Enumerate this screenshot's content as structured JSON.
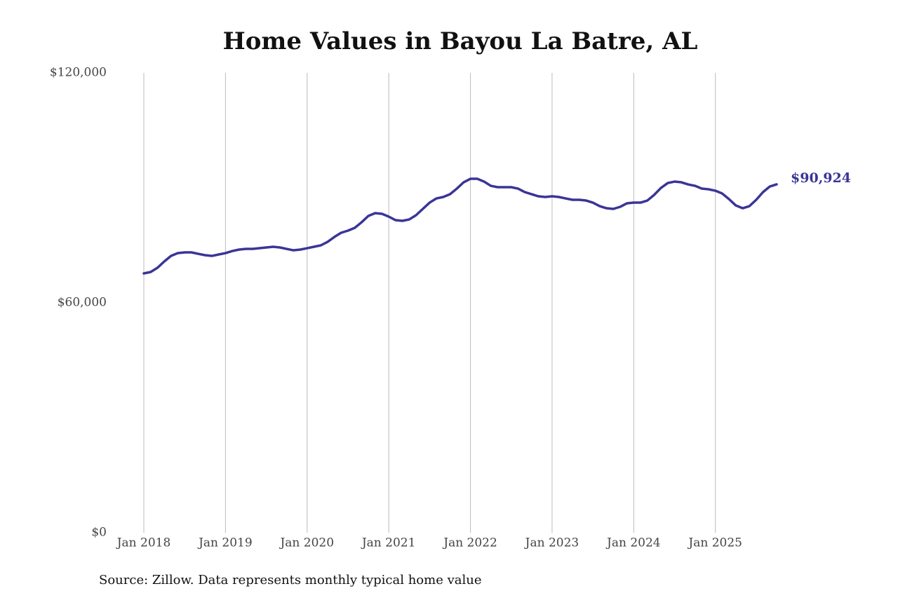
{
  "chart_data": {
    "type": "line",
    "title": "Home Values in Bayou La Batre, AL",
    "source": "Source: Zillow. Data represents monthly typical home value",
    "color": "#3a3596",
    "x": [
      "2018-01",
      "2018-02",
      "2018-03",
      "2018-04",
      "2018-05",
      "2018-06",
      "2018-07",
      "2018-08",
      "2018-09",
      "2018-10",
      "2018-11",
      "2018-12",
      "2019-01",
      "2019-02",
      "2019-03",
      "2019-04",
      "2019-05",
      "2019-06",
      "2019-07",
      "2019-08",
      "2019-09",
      "2019-10",
      "2019-11",
      "2019-12",
      "2020-01",
      "2020-02",
      "2020-03",
      "2020-04",
      "2020-05",
      "2020-06",
      "2020-07",
      "2020-08",
      "2020-09",
      "2020-10",
      "2020-11",
      "2020-12",
      "2021-01",
      "2021-02",
      "2021-03",
      "2021-04",
      "2021-05",
      "2021-06",
      "2021-07",
      "2021-08",
      "2021-09",
      "2021-10",
      "2021-11",
      "2021-12",
      "2022-01",
      "2022-02",
      "2022-03",
      "2022-04",
      "2022-05",
      "2022-06",
      "2022-07",
      "2022-08",
      "2022-09",
      "2022-10",
      "2022-11",
      "2022-12",
      "2023-01",
      "2023-02",
      "2023-03",
      "2023-04",
      "2023-05",
      "2023-06",
      "2023-07",
      "2023-08",
      "2023-09",
      "2023-10",
      "2023-11",
      "2023-12",
      "2024-01",
      "2024-02",
      "2024-03",
      "2024-04",
      "2024-05",
      "2024-06",
      "2024-07",
      "2024-08",
      "2024-09",
      "2024-10",
      "2024-11",
      "2024-12",
      "2025-01",
      "2025-02",
      "2025-03",
      "2025-04",
      "2025-05",
      "2025-06",
      "2025-07",
      "2025-08",
      "2025-09",
      "2025-10"
    ],
    "values": [
      67680,
      68050,
      69140,
      70790,
      72250,
      72980,
      73170,
      73170,
      72800,
      72440,
      72250,
      72620,
      72980,
      73530,
      73900,
      74080,
      74080,
      74260,
      74450,
      74630,
      74450,
      74080,
      73710,
      73900,
      74260,
      74630,
      75000,
      75910,
      77190,
      78290,
      78840,
      79570,
      81030,
      82680,
      83410,
      83230,
      82500,
      81580,
      81400,
      81760,
      82860,
      84510,
      86150,
      87250,
      87620,
      88350,
      89810,
      91460,
      92370,
      92370,
      91640,
      90540,
      90180,
      90180,
      90180,
      89810,
      88900,
      88350,
      87800,
      87620,
      87800,
      87620,
      87250,
      86890,
      86890,
      86700,
      86150,
      85240,
      84690,
      84510,
      85060,
      85970,
      86150,
      86150,
      86700,
      88170,
      89990,
      91270,
      91640,
      91460,
      90910,
      90540,
      89810,
      89630,
      89260,
      88530,
      87070,
      85420,
      84690,
      85240,
      86890,
      88900,
      90360,
      90924
    ],
    "value_labels": [
      null,
      null,
      null,
      null,
      null,
      null,
      null,
      null,
      null,
      null,
      null,
      null,
      null,
      null,
      null,
      null,
      null,
      null,
      null,
      null,
      null,
      null,
      null,
      null,
      null,
      null,
      null,
      null,
      null,
      null,
      null,
      null,
      null,
      null,
      null,
      null,
      null,
      null,
      null,
      null,
      null,
      null,
      null,
      null,
      null,
      null,
      null,
      null,
      null,
      null,
      null,
      null,
      null,
      null,
      null,
      null,
      null,
      null,
      null,
      null,
      null,
      null,
      null,
      null,
      null,
      null,
      null,
      null,
      null,
      null,
      null,
      null,
      null,
      null,
      null,
      null,
      null,
      null,
      null,
      null,
      null,
      null,
      null,
      null,
      null,
      null,
      null,
      null,
      null,
      null,
      null,
      null,
      null,
      "$90,924"
    ],
    "xlim": [
      "2018-01",
      "2025-10"
    ],
    "xticks": [
      {
        "value": "2018-01",
        "label": "Jan 2018"
      },
      {
        "value": "2019-01",
        "label": "Jan 2019"
      },
      {
        "value": "2020-01",
        "label": "Jan 2020"
      },
      {
        "value": "2021-01",
        "label": "Jan 2021"
      },
      {
        "value": "2022-01",
        "label": "Jan 2022"
      },
      {
        "value": "2023-01",
        "label": "Jan 2023"
      },
      {
        "value": "2024-01",
        "label": "Jan 2024"
      },
      {
        "value": "2025-01",
        "label": "Jan 2025"
      }
    ],
    "ylim": [
      0,
      120000
    ],
    "yticks": [
      {
        "value": 0,
        "label": "$0"
      },
      {
        "value": 60000,
        "label": "$60,000"
      },
      {
        "value": 120000,
        "label": "$120,000"
      }
    ],
    "grid": "x"
  }
}
